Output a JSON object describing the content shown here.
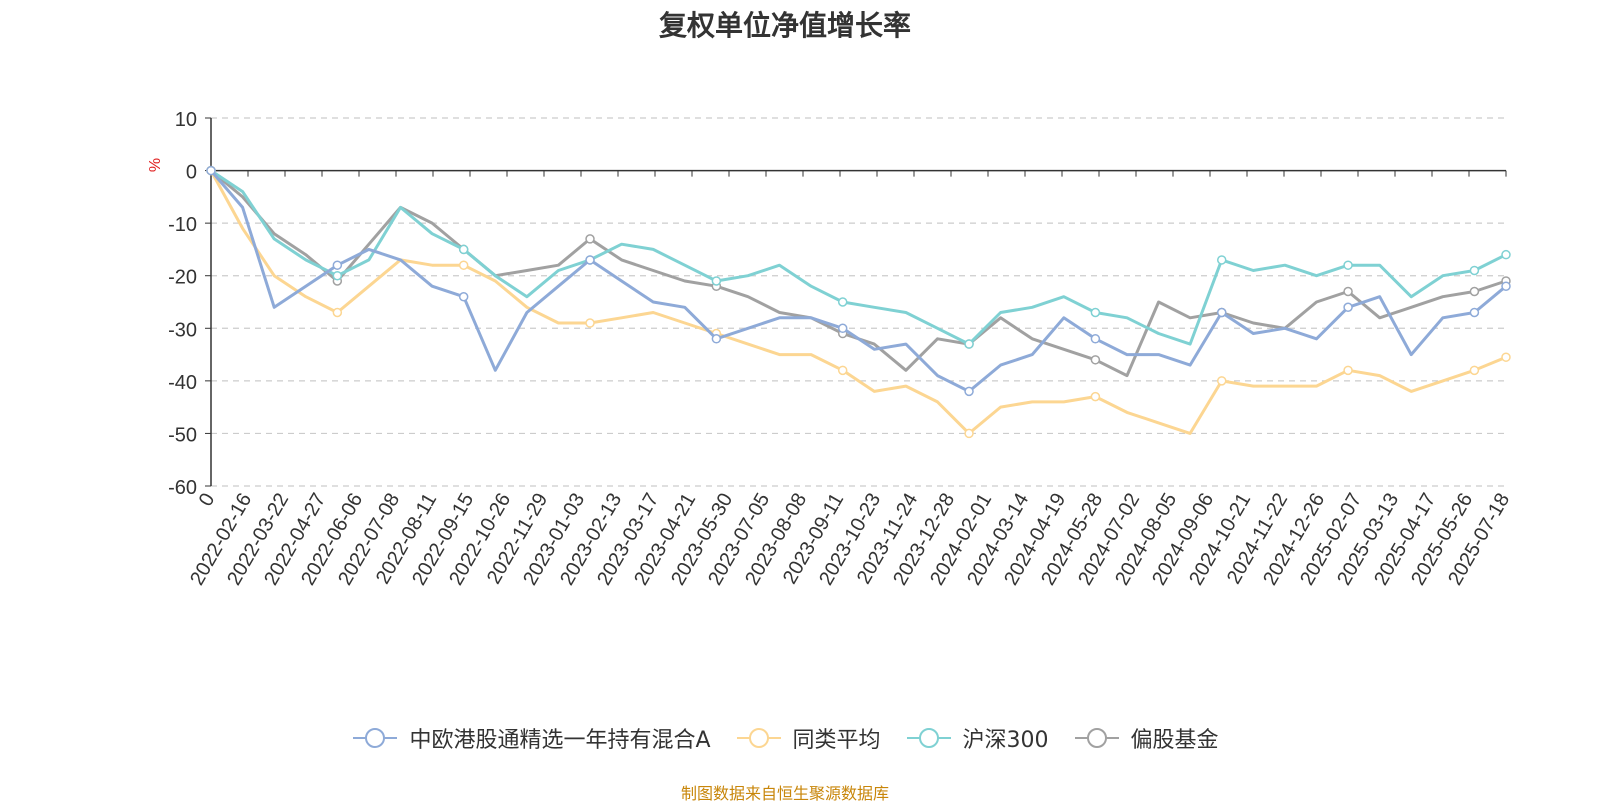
{
  "chart_data": {
    "type": "line",
    "title": "复权单位净值增长率",
    "ylabel": "%",
    "ylim": [
      -60,
      10
    ],
    "yticks": [
      10,
      0,
      -10,
      -20,
      -30,
      -40,
      -50,
      -60
    ],
    "x_tick_labels": [
      "0",
      "2022-02-16",
      "2022-03-22",
      "2022-04-27",
      "2022-06-06",
      "2022-07-08",
      "2022-08-11",
      "2022-09-15",
      "2022-10-26",
      "2022-11-29",
      "2023-01-03",
      "2023-02-13",
      "2023-03-17",
      "2023-04-21",
      "2023-05-30",
      "2023-07-05",
      "2023-08-08",
      "2023-09-11",
      "2023-10-23",
      "2023-11-24",
      "2023-12-28",
      "2024-02-01",
      "2024-03-14",
      "2024-04-19",
      "2024-05-28",
      "2024-07-02",
      "2024-08-05",
      "2024-09-06",
      "2024-10-21",
      "2024-11-22",
      "2024-12-26",
      "2025-02-07",
      "2025-03-13",
      "2025-04-17",
      "2025-05-26",
      "2025-07-18"
    ],
    "grid": true,
    "legend_position": "bottom",
    "series": [
      {
        "name": "中欧港股通精选一年持有混合A",
        "color": "#8eaad8",
        "values": [
          0,
          -7,
          -26,
          -22,
          -18,
          -15,
          -17,
          -22,
          -24,
          -38,
          -27,
          -22,
          -17,
          -21,
          -25,
          -26,
          -32,
          -30,
          -28,
          -28,
          -30,
          -34,
          -33,
          -39,
          -42,
          -37,
          -35,
          -28,
          -32,
          -35,
          -35,
          -37,
          -27,
          -31,
          -30,
          -32,
          -26,
          -24,
          -35,
          -28,
          -27,
          -22
        ]
      },
      {
        "name": "同类平均",
        "color": "#fcd692",
        "values": [
          0,
          -11,
          -20,
          -24,
          -27,
          -22,
          -17,
          -18,
          -18,
          -21,
          -26,
          -29,
          -29,
          -28,
          -27,
          -29,
          -31,
          -33,
          -35,
          -35,
          -38,
          -42,
          -41,
          -44,
          -50,
          -45,
          -44,
          -44,
          -43,
          -46,
          -48,
          -50,
          -40,
          -41,
          -41,
          -41,
          -38,
          -39,
          -42,
          -40,
          -38,
          -35.5
        ]
      },
      {
        "name": "沪深300",
        "color": "#7fd1d3",
        "values": [
          0,
          -4,
          -13,
          -17,
          -20,
          -17,
          -7,
          -12,
          -15,
          -20,
          -24,
          -19,
          -17,
          -14,
          -15,
          -18,
          -21,
          -20,
          -18,
          -22,
          -25,
          -26,
          -27,
          -30,
          -33,
          -27,
          -26,
          -24,
          -27,
          -28,
          -31,
          -33,
          -17,
          -19,
          -18,
          -20,
          -18,
          -18,
          -24,
          -20,
          -19,
          -16
        ]
      },
      {
        "name": "偏股基金",
        "color": "#a1a1a1",
        "values": [
          0,
          -5,
          -12,
          -16,
          -21,
          -14,
          -7,
          -10,
          -15,
          -20,
          -19,
          -18,
          -13,
          -17,
          -19,
          -21,
          -22,
          -24,
          -27,
          -28,
          -31,
          -33,
          -38,
          -32,
          -33,
          -28,
          -32,
          -34,
          -36,
          -39,
          -25,
          -28,
          -27,
          -29,
          -30,
          -25,
          -23,
          -28,
          -26,
          -24,
          -23,
          -21
        ]
      }
    ]
  },
  "footer": "制图数据来自恒生聚源数据库"
}
